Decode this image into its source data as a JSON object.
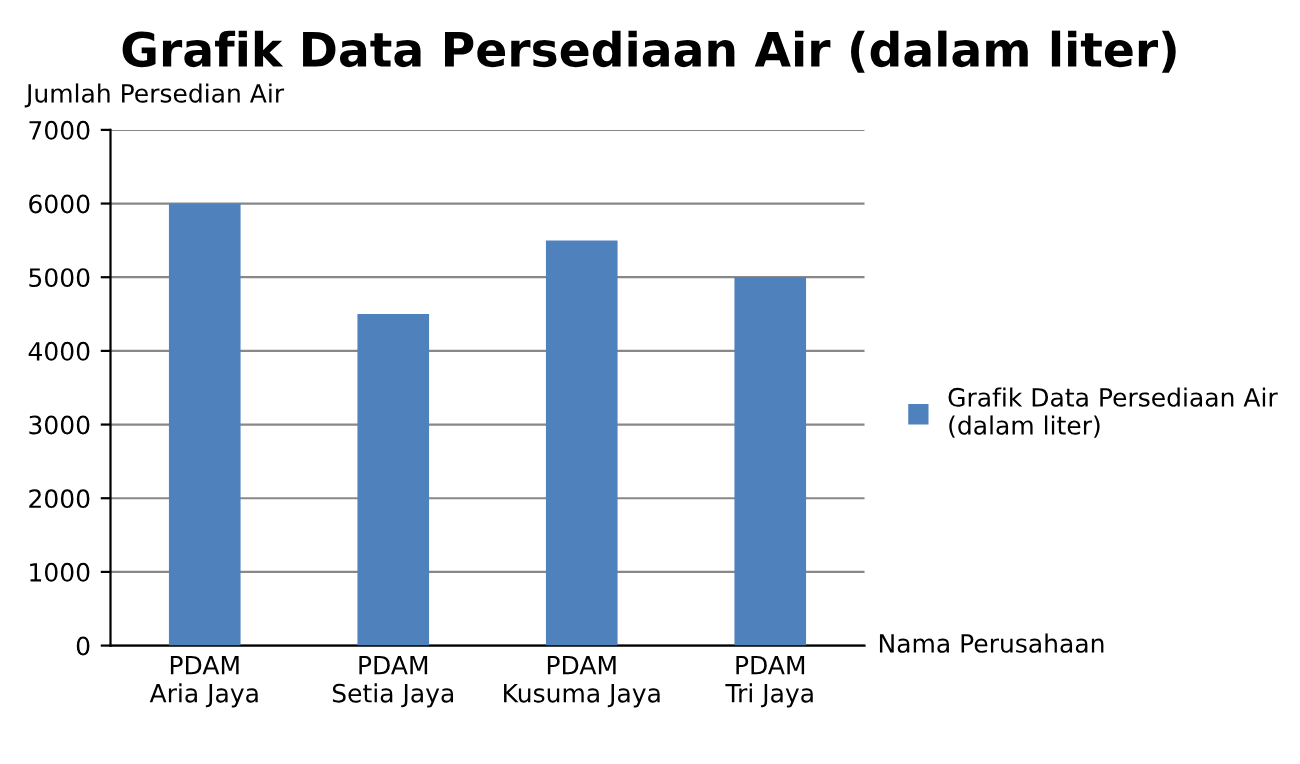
{
  "chart_data": {
    "type": "bar",
    "title": "Grafik Data Persediaan Air (dalam liter)",
    "ylabel": "Jumlah Persedian Air",
    "xlabel": "Nama Perusahaan",
    "categories": [
      "PDAM\nAria Jaya",
      "PDAM\nSetia Jaya",
      "PDAM\nKusuma Jaya",
      "PDAM\nTri Jaya"
    ],
    "series": [
      {
        "name": "Grafik Data Persediaan Air\n(dalam liter)",
        "color": "#4f81bd",
        "values": [
          6000,
          4500,
          5500,
          5000
        ]
      }
    ],
    "ylim": [
      0,
      7000
    ],
    "yticks": [
      0,
      1000,
      2000,
      3000,
      4000,
      5000,
      6000,
      7000
    ],
    "grid": "y",
    "legend": "right"
  }
}
